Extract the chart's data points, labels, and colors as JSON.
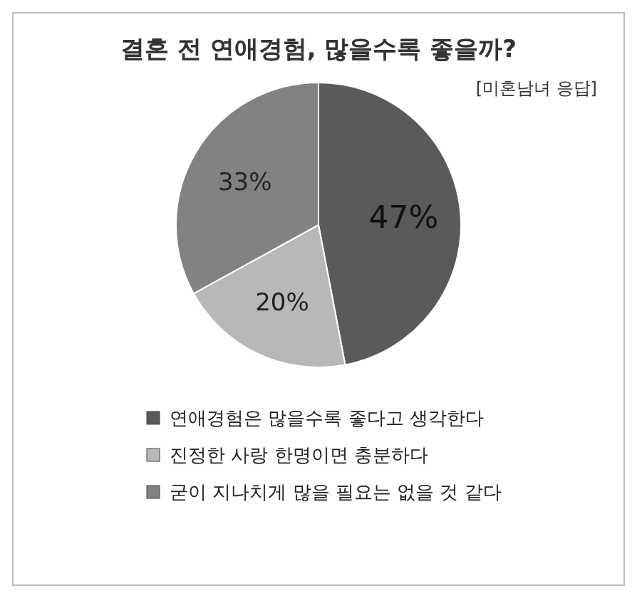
{
  "chart_data": {
    "type": "pie",
    "title": "결혼 전 연애경험, 많을수록 좋을까?",
    "subtitle": "[미혼남녀 응답]",
    "categories": [
      "연애경험은 많을수록 좋다고 생각한다",
      "진정한 사랑 한명이면 충분하다",
      "굳이 지나치게 많을 필요는 없을 것 같다"
    ],
    "values": [
      47,
      20,
      33
    ],
    "colors": [
      "#5a5a5a",
      "#b8b8b8",
      "#828282"
    ],
    "value_labels": [
      "47%",
      "20%",
      "33%"
    ],
    "legend": "bottom"
  }
}
